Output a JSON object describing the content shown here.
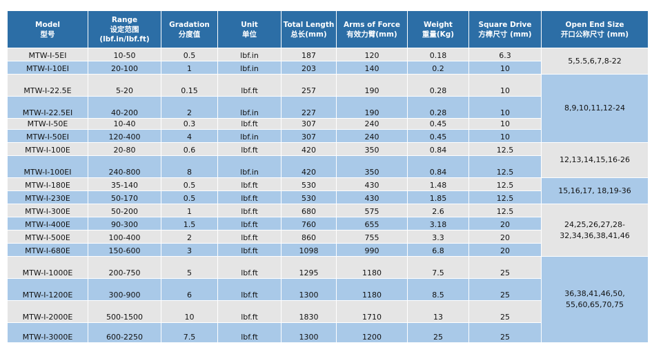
{
  "headers": [
    {
      "en": "Model",
      "cn": "型号"
    },
    {
      "en": "Range",
      "cn": "设定范围",
      "unit": "(lbf.in/lbf.ft)"
    },
    {
      "en": "Gradation",
      "cn": "分度值"
    },
    {
      "en": "Unit",
      "cn": "单位"
    },
    {
      "en": "Total Length",
      "cn": "总长(mm)"
    },
    {
      "en": "Arms of Force",
      "cn": "有效力臂(mm)"
    },
    {
      "en": "Weight",
      "cn": "重量(Kg)"
    },
    {
      "en": "Square Drive",
      "cn": "方榫尺寸 (mm)"
    },
    {
      "en": "Open End Size",
      "cn": "开口公称尺寸 (mm)"
    }
  ],
  "rows": [
    {
      "model": "MTW-I-5EI",
      "range": "10-50",
      "gradation": "0.5",
      "unit": "lbf.in",
      "length": "187",
      "arm": "120",
      "weight": "0.18",
      "drive": "6.3",
      "h": 19,
      "shade": "grey"
    },
    {
      "model": "MTW-I-10EI",
      "range": "20-100",
      "gradation": "1",
      "unit": "lbf.in",
      "length": "203",
      "arm": "140",
      "weight": "0.2",
      "drive": "10",
      "h": 19,
      "shade": "blue"
    },
    {
      "model": "MTW-I-22.5E",
      "range": "5-20",
      "gradation": "0.15",
      "unit": "lbf.ft",
      "length": "257",
      "arm": "190",
      "weight": "0.28",
      "drive": "10",
      "h": 32,
      "shade": "grey"
    },
    {
      "model": "MTW-I-22.5EI",
      "range": "40-200",
      "gradation": "2",
      "unit": "lbf.in",
      "length": "227",
      "arm": "190",
      "weight": "0.28",
      "drive": "10",
      "h": 32,
      "shade": "blue"
    },
    {
      "model": "MTW-I-50E",
      "range": "10-40",
      "gradation": "0.3",
      "unit": "lbf.ft",
      "length": "307",
      "arm": "240",
      "weight": "0.45",
      "drive": "10",
      "h": 16,
      "shade": "grey"
    },
    {
      "model": "MTW-I-50EI",
      "range": "120-400",
      "gradation": "4",
      "unit": "lbf.in",
      "length": "307",
      "arm": "240",
      "weight": "0.45",
      "drive": "10",
      "h": 19,
      "shade": "blue"
    },
    {
      "model": "MTW-I-100E",
      "range": "20-80",
      "gradation": "0.6",
      "unit": "lbf.ft",
      "length": "420",
      "arm": "350",
      "weight": "0.84",
      "drive": "12.5",
      "h": 19,
      "shade": "grey"
    },
    {
      "model": "MTW-I-100EI",
      "range": "240-800",
      "gradation": "8",
      "unit": "lbf.in",
      "length": "420",
      "arm": "350",
      "weight": "0.84",
      "drive": "12.5",
      "h": 32,
      "shade": "blue"
    },
    {
      "model": "MTW-I-180E",
      "range": "35-140",
      "gradation": "0.5",
      "unit": "lbf.ft",
      "length": "530",
      "arm": "430",
      "weight": "1.48",
      "drive": "12.5",
      "h": 19,
      "shade": "grey"
    },
    {
      "model": "MTW-I-230E",
      "range": "50-170",
      "gradation": "0.5",
      "unit": "lbf.ft",
      "length": "530",
      "arm": "430",
      "weight": "1.85",
      "drive": "12.5",
      "h": 19,
      "shade": "blue"
    },
    {
      "model": "MTW-I-300E",
      "range": "50-200",
      "gradation": "1",
      "unit": "lbf.ft",
      "length": "680",
      "arm": "575",
      "weight": "2.6",
      "drive": "12.5",
      "h": 19,
      "shade": "grey"
    },
    {
      "model": "MTW-I-400E",
      "range": "90-300",
      "gradation": "1.5",
      "unit": "lbf.ft",
      "length": "760",
      "arm": "655",
      "weight": "3.18",
      "drive": "20",
      "h": 19,
      "shade": "blue"
    },
    {
      "model": "MTW-I-500E",
      "range": "100-400",
      "gradation": "2",
      "unit": "lbf.ft",
      "length": "860",
      "arm": "755",
      "weight": "3.3",
      "drive": "20",
      "h": 19,
      "shade": "grey"
    },
    {
      "model": "MTW-I-680E",
      "range": "150-600",
      "gradation": "3",
      "unit": "lbf.ft",
      "length": "1098",
      "arm": "990",
      "weight": "6.8",
      "drive": "20",
      "h": 19,
      "shade": "blue"
    },
    {
      "model": "MTW-I-1000E",
      "range": "200-750",
      "gradation": "5",
      "unit": "lbf.ft",
      "length": "1295",
      "arm": "1180",
      "weight": "7.5",
      "drive": "25",
      "h": 32,
      "shade": "grey"
    },
    {
      "model": "MTW-I-1200E",
      "range": "300-900",
      "gradation": "6",
      "unit": "lbf.ft",
      "length": "1300",
      "arm": "1180",
      "weight": "8.5",
      "drive": "25",
      "h": 32,
      "shade": "blue"
    },
    {
      "model": "MTW-I-2000E",
      "range": "500-1500",
      "gradation": "10",
      "unit": "lbf.ft",
      "length": "1830",
      "arm": "1710",
      "weight": "13",
      "drive": "25",
      "h": 32,
      "shade": "grey"
    },
    {
      "model": "MTW-I-3000E",
      "range": "600-2250",
      "gradation": "7.5",
      "unit": "lbf.ft",
      "length": "1300",
      "arm": "1200",
      "weight": "25",
      "drive": "25",
      "h": 29,
      "shade": "blue"
    }
  ],
  "open_end_groups": [
    {
      "start": 0,
      "span": 2,
      "text": "5,5.5,6,7,8-22",
      "shade": "grey"
    },
    {
      "start": 2,
      "span": 4,
      "text": "8,9,10,11,12-24",
      "shade": "blue"
    },
    {
      "start": 6,
      "span": 2,
      "text": "12,13,14,15,16-26",
      "shade": "grey"
    },
    {
      "start": 8,
      "span": 2,
      "text": "15,16,17, 18,19-36",
      "shade": "blue"
    },
    {
      "start": 10,
      "span": 4,
      "text": "24,25,26,27,28- 32,34,36,38,41,46",
      "shade": "grey"
    },
    {
      "start": 14,
      "span": 4,
      "text": "36,38,41,46,50, 55,60,65,70,75",
      "shade": "blue"
    }
  ]
}
